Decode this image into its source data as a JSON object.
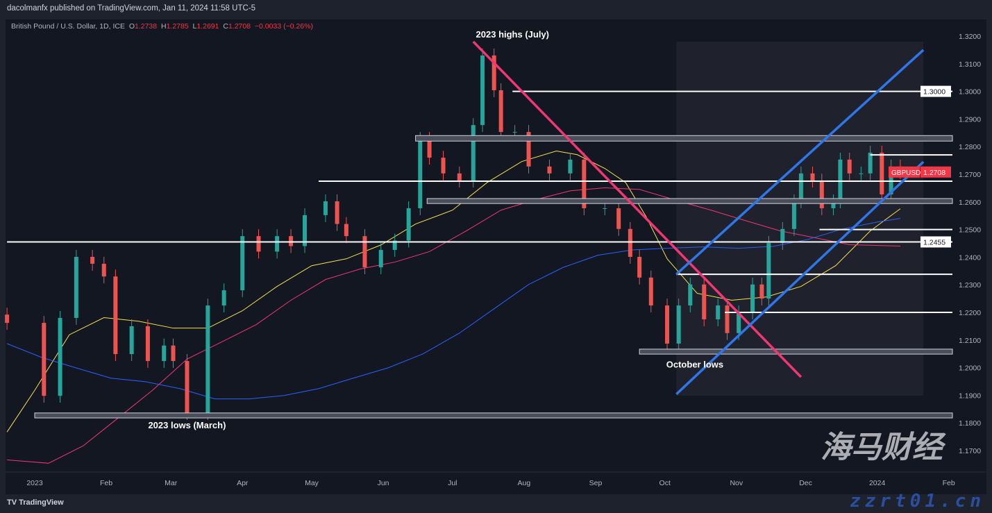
{
  "header": {
    "publisher": "dacolmanfx published on TradingView.com, Jan 11, 2024 11:58 UTC-5"
  },
  "legend": {
    "symbol": "British Pound / U.S. Dollar, 1D, ICE",
    "o_label": "O",
    "o": "1.2738",
    "h_label": "H",
    "h": "1.2785",
    "l_label": "L",
    "l": "1.2691",
    "c_label": "C",
    "c": "1.2708",
    "change": "−0.0033 (−0.26%)"
  },
  "footer": {
    "logo": "TradingView"
  },
  "watermark": {
    "cn": "海马财经",
    "url": "zzrt01.cn"
  },
  "colors": {
    "bg": "#131722",
    "up": "#26a69a",
    "down": "#ef5350",
    "ma_yellow": "#f7e24a",
    "ma_red": "#f23672",
    "ma_blue": "#2962ff",
    "trend_pink": "#f23672",
    "channel_blue": "#2f76e8",
    "price_label": "#f23645"
  },
  "chart_data": {
    "type": "candlestick",
    "symbol": "GBPUSD",
    "ylim": [
      1.17,
      1.32
    ],
    "xlim": [
      "2022-12-20",
      "2024-02-12"
    ],
    "y_ticks": [
      "1.1700",
      "1.1800",
      "1.1900",
      "1.2000",
      "1.2100",
      "1.2200",
      "1.2300",
      "1.2400",
      "1.2500",
      "1.2600",
      "1.2700",
      "1.2800",
      "1.2900",
      "1.3000",
      "1.3100",
      "1.3200"
    ],
    "x_ticks": [
      {
        "label": "2023",
        "date": "2023-01-01"
      },
      {
        "label": "Feb",
        "date": "2023-02-01"
      },
      {
        "label": "Mar",
        "date": "2023-03-01"
      },
      {
        "label": "Apr",
        "date": "2023-04-01"
      },
      {
        "label": "May",
        "date": "2023-05-01"
      },
      {
        "label": "Jun",
        "date": "2023-06-01"
      },
      {
        "label": "Jul",
        "date": "2023-07-01"
      },
      {
        "label": "Aug",
        "date": "2023-08-01"
      },
      {
        "label": "Sep",
        "date": "2023-09-01"
      },
      {
        "label": "Oct",
        "date": "2023-10-01"
      },
      {
        "label": "Nov",
        "date": "2023-11-01"
      },
      {
        "label": "Dec",
        "date": "2023-12-01"
      },
      {
        "label": "2024",
        "date": "2024-01-01"
      },
      {
        "label": "Feb",
        "date": "2024-02-01"
      }
    ],
    "closes": [
      [
        "2022-12-20",
        1.2162
      ],
      [
        "2023-01-05",
        1.1898
      ],
      [
        "2023-01-12",
        1.218
      ],
      [
        "2023-01-19",
        1.2401
      ],
      [
        "2023-01-26",
        1.2376
      ],
      [
        "2023-01-31",
        1.233
      ],
      [
        "2023-02-05",
        1.2049
      ],
      [
        "2023-02-12",
        1.215
      ],
      [
        "2023-02-19",
        1.2024
      ],
      [
        "2023-02-26",
        1.208
      ],
      [
        "2023-03-02",
        1.2024
      ],
      [
        "2023-03-08",
        1.1836
      ],
      [
        "2023-03-17",
        1.2225
      ],
      [
        "2023-03-24",
        1.228
      ],
      [
        "2023-04-01",
        1.2476
      ],
      [
        "2023-04-08",
        1.242
      ],
      [
        "2023-04-16",
        1.2476
      ],
      [
        "2023-04-22",
        1.244
      ],
      [
        "2023-04-28",
        1.2552
      ],
      [
        "2023-05-07",
        1.2602
      ],
      [
        "2023-05-12",
        1.252
      ],
      [
        "2023-05-16",
        1.2476
      ],
      [
        "2023-05-24",
        1.2363
      ],
      [
        "2023-05-31",
        1.2426
      ],
      [
        "2023-06-06",
        1.246
      ],
      [
        "2023-06-12",
        1.2577
      ],
      [
        "2023-06-17",
        1.2828
      ],
      [
        "2023-06-21",
        1.276
      ],
      [
        "2023-06-27",
        1.2703
      ],
      [
        "2023-07-04",
        1.2677
      ],
      [
        "2023-07-10",
        1.2878
      ],
      [
        "2023-07-14",
        1.313
      ],
      [
        "2023-07-19",
        1.3004
      ],
      [
        "2023-07-22",
        1.2853
      ],
      [
        "2023-07-28",
        1.2853
      ],
      [
        "2023-08-03",
        1.2728
      ],
      [
        "2023-08-12",
        1.2703
      ],
      [
        "2023-08-21",
        1.2753
      ],
      [
        "2023-08-27",
        1.2577
      ],
      [
        "2023-09-05",
        1.2577
      ],
      [
        "2023-09-11",
        1.2502
      ],
      [
        "2023-09-16",
        1.2401
      ],
      [
        "2023-09-20",
        1.2326
      ],
      [
        "2023-09-25",
        1.2225
      ],
      [
        "2023-10-02",
        1.2087
      ],
      [
        "2023-10-07",
        1.2225
      ],
      [
        "2023-10-12",
        1.2301
      ],
      [
        "2023-10-18",
        1.2175
      ],
      [
        "2023-10-24",
        1.2225
      ],
      [
        "2023-10-28",
        1.2125
      ],
      [
        "2023-11-02",
        1.22
      ],
      [
        "2023-11-08",
        1.2301
      ],
      [
        "2023-11-12",
        1.225
      ],
      [
        "2023-11-15",
        1.2451
      ],
      [
        "2023-11-21",
        1.2502
      ],
      [
        "2023-11-26",
        1.2602
      ],
      [
        "2023-11-29",
        1.2703
      ],
      [
        "2023-12-04",
        1.2677
      ],
      [
        "2023-12-08",
        1.2577
      ],
      [
        "2023-12-13",
        1.2602
      ],
      [
        "2023-12-16",
        1.2753
      ],
      [
        "2023-12-20",
        1.2703
      ],
      [
        "2023-12-25",
        1.2703
      ],
      [
        "2023-12-29",
        1.2778
      ],
      [
        "2024-01-03",
        1.2627
      ],
      [
        "2024-01-07",
        1.2728
      ],
      [
        "2024-01-11",
        1.2708
      ]
    ],
    "moving_averages": [
      {
        "color": "#f7e24a",
        "points": [
          [
            "2022-12-20",
            1.1767
          ],
          [
            "2023-01-01",
            1.1918
          ],
          [
            "2023-01-16",
            1.2119
          ],
          [
            "2023-01-31",
            1.2181
          ],
          [
            "2023-02-15",
            1.2168
          ],
          [
            "2023-03-02",
            1.2143
          ],
          [
            "2023-03-17",
            1.2143
          ],
          [
            "2023-04-01",
            1.2206
          ],
          [
            "2023-04-16",
            1.2294
          ],
          [
            "2023-05-01",
            1.2369
          ],
          [
            "2023-05-16",
            1.2394
          ],
          [
            "2023-05-31",
            1.2444
          ],
          [
            "2023-06-15",
            1.252
          ],
          [
            "2023-07-01",
            1.257
          ],
          [
            "2023-07-16",
            1.267
          ],
          [
            "2023-07-31",
            1.2746
          ],
          [
            "2023-08-15",
            1.2784
          ],
          [
            "2023-08-24",
            1.2771
          ],
          [
            "2023-09-05",
            1.2721
          ],
          [
            "2023-09-14",
            1.267
          ],
          [
            "2023-09-23",
            1.2545
          ],
          [
            "2023-10-02",
            1.2394
          ],
          [
            "2023-10-15",
            1.2269
          ],
          [
            "2023-10-30",
            1.2244
          ],
          [
            "2023-11-14",
            1.2256
          ],
          [
            "2023-11-29",
            1.2294
          ],
          [
            "2023-12-14",
            1.2369
          ],
          [
            "2023-12-29",
            1.2495
          ],
          [
            "2024-01-11",
            1.2575
          ]
        ]
      },
      {
        "color": "#f23672",
        "points": [
          [
            "2022-12-20",
            1.1666
          ],
          [
            "2023-01-07",
            1.1654
          ],
          [
            "2023-01-22",
            1.1717
          ],
          [
            "2023-02-06",
            1.1817
          ],
          [
            "2023-02-21",
            1.1918
          ],
          [
            "2023-03-08",
            1.2031
          ],
          [
            "2023-03-23",
            1.2093
          ],
          [
            "2023-04-07",
            1.2156
          ],
          [
            "2023-04-22",
            1.2244
          ],
          [
            "2023-05-07",
            1.2319
          ],
          [
            "2023-05-22",
            1.2357
          ],
          [
            "2023-06-06",
            1.2382
          ],
          [
            "2023-06-21",
            1.242
          ],
          [
            "2023-07-07",
            1.2495
          ],
          [
            "2023-07-22",
            1.257
          ],
          [
            "2023-08-06",
            1.2608
          ],
          [
            "2023-08-21",
            1.264
          ],
          [
            "2023-09-05",
            1.2651
          ],
          [
            "2023-09-20",
            1.2645
          ],
          [
            "2023-10-05",
            1.2608
          ],
          [
            "2023-10-21",
            1.257
          ],
          [
            "2023-11-05",
            1.2532
          ],
          [
            "2023-11-20",
            1.2495
          ],
          [
            "2023-12-05",
            1.247
          ],
          [
            "2023-12-20",
            1.2445
          ],
          [
            "2024-01-11",
            1.244
          ]
        ]
      },
      {
        "color": "#2962ff",
        "points": [
          [
            "2022-12-20",
            1.2087
          ],
          [
            "2023-01-04",
            1.2037
          ],
          [
            "2023-01-19",
            1.1999
          ],
          [
            "2023-02-03",
            1.1962
          ],
          [
            "2023-02-18",
            1.1949
          ],
          [
            "2023-03-05",
            1.1924
          ],
          [
            "2023-03-20",
            1.1887
          ],
          [
            "2023-04-04",
            1.1887
          ],
          [
            "2023-04-19",
            1.1899
          ],
          [
            "2023-05-04",
            1.1924
          ],
          [
            "2023-05-19",
            1.1962
          ],
          [
            "2023-06-03",
            1.1999
          ],
          [
            "2023-06-18",
            1.2049
          ],
          [
            "2023-07-04",
            1.2125
          ],
          [
            "2023-07-19",
            1.2213
          ],
          [
            "2023-08-03",
            1.2301
          ],
          [
            "2023-08-18",
            1.2363
          ],
          [
            "2023-09-02",
            1.2407
          ],
          [
            "2023-09-17",
            1.2426
          ],
          [
            "2023-10-02",
            1.2432
          ],
          [
            "2023-10-18",
            1.2437
          ],
          [
            "2023-11-02",
            1.2432
          ],
          [
            "2023-11-17",
            1.2439
          ],
          [
            "2023-12-02",
            1.2464
          ],
          [
            "2023-12-17",
            1.2502
          ],
          [
            "2024-01-01",
            1.2527
          ],
          [
            "2024-01-11",
            1.254
          ]
        ]
      }
    ],
    "horizontal_levels": [
      {
        "type": "line",
        "price": 1.3,
        "from": "2023-07-27",
        "label": "1.3000"
      },
      {
        "type": "zone",
        "top": 1.284,
        "bottom": 1.282,
        "from": "2023-06-15"
      },
      {
        "type": "line",
        "price": 1.277,
        "from": "2023-12-29"
      },
      {
        "type": "line",
        "price": 1.2675,
        "from": "2023-05-04"
      },
      {
        "type": "zone",
        "top": 1.2612,
        "bottom": 1.2594,
        "from": "2023-06-20"
      },
      {
        "type": "line",
        "price": 1.25,
        "from": "2023-12-07"
      },
      {
        "type": "line",
        "price": 1.2455,
        "from": "2022-12-20",
        "label": "1.2455"
      },
      {
        "type": "line",
        "price": 1.2338,
        "from": "2023-10-06"
      },
      {
        "type": "line",
        "price": 1.22,
        "from": "2023-10-27"
      },
      {
        "type": "zone",
        "top": 1.2067,
        "bottom": 1.2049,
        "from": "2023-09-20"
      },
      {
        "type": "zone",
        "top": 1.1836,
        "bottom": 1.1818,
        "from": "2023-01-01"
      }
    ],
    "trend_lines": [
      {
        "color": "#f23672",
        "from": [
          "2023-07-10",
          1.318
        ],
        "to": [
          "2023-11-29",
          1.1966
        ]
      },
      {
        "color": "#2f76e8",
        "from": [
          "2023-10-06",
          1.2338
        ],
        "to": [
          "2024-01-21",
          1.315
        ]
      },
      {
        "color": "#2f76e8",
        "from": [
          "2023-10-06",
          1.1904
        ],
        "to": [
          "2024-01-21",
          1.2745
        ]
      }
    ],
    "date_range_shade": {
      "from": "2023-10-06",
      "to": "2024-01-21"
    },
    "annotations": [
      {
        "text": "2023 highs (July)",
        "date": "2023-07-27",
        "price": 1.3195
      },
      {
        "text": "October lows",
        "date": "2023-10-14",
        "price": 1.2
      },
      {
        "text": "2023 lows (March)",
        "date": "2023-03-08",
        "price": 1.178
      }
    ],
    "last_price": {
      "symbol": "GBPUSD",
      "value": "1.2708",
      "price": 1.2708
    }
  }
}
